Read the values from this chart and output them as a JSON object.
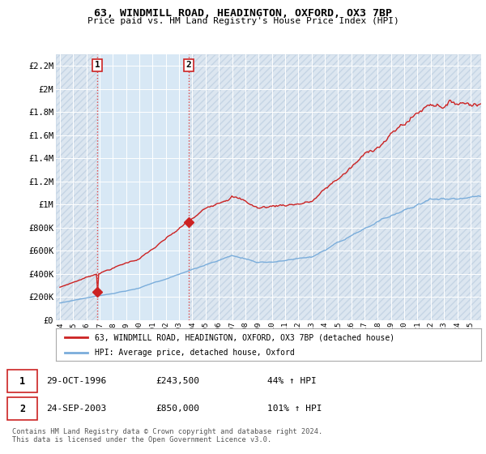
{
  "title": "63, WINDMILL ROAD, HEADINGTON, OXFORD, OX3 7BP",
  "subtitle": "Price paid vs. HM Land Registry's House Price Index (HPI)",
  "ylim": [
    0,
    2300000
  ],
  "yticks": [
    0,
    200000,
    400000,
    600000,
    800000,
    1000000,
    1200000,
    1400000,
    1600000,
    1800000,
    2000000,
    2200000
  ],
  "ytick_labels": [
    "£0",
    "£200K",
    "£400K",
    "£600K",
    "£800K",
    "£1M",
    "£1.2M",
    "£1.4M",
    "£1.6M",
    "£1.8M",
    "£2M",
    "£2.2M"
  ],
  "xlim_start": 1993.7,
  "xlim_end": 2025.8,
  "purchase1_x": 1996.83,
  "purchase1_y": 243500,
  "purchase2_x": 2003.73,
  "purchase2_y": 850000,
  "legend_line1": "63, WINDMILL ROAD, HEADINGTON, OXFORD, OX3 7BP (detached house)",
  "legend_line2": "HPI: Average price, detached house, Oxford",
  "table_row1_date": "29-OCT-1996",
  "table_row1_price": "£243,500",
  "table_row1_change": "44% ↑ HPI",
  "table_row2_date": "24-SEP-2003",
  "table_row2_price": "£850,000",
  "table_row2_change": "101% ↑ HPI",
  "footnote": "Contains HM Land Registry data © Crown copyright and database right 2024.\nThis data is licensed under the Open Government Licence v3.0.",
  "line_red": "#cc2222",
  "line_blue": "#7aaddb",
  "vline_color": "#dd4444",
  "shade_color": "#d8e8f5",
  "plot_bg": "#e8eff8",
  "grid_color": "#ffffff",
  "hatch_bg": "#dce6f0",
  "hatch_edge": "#c5d5e5"
}
